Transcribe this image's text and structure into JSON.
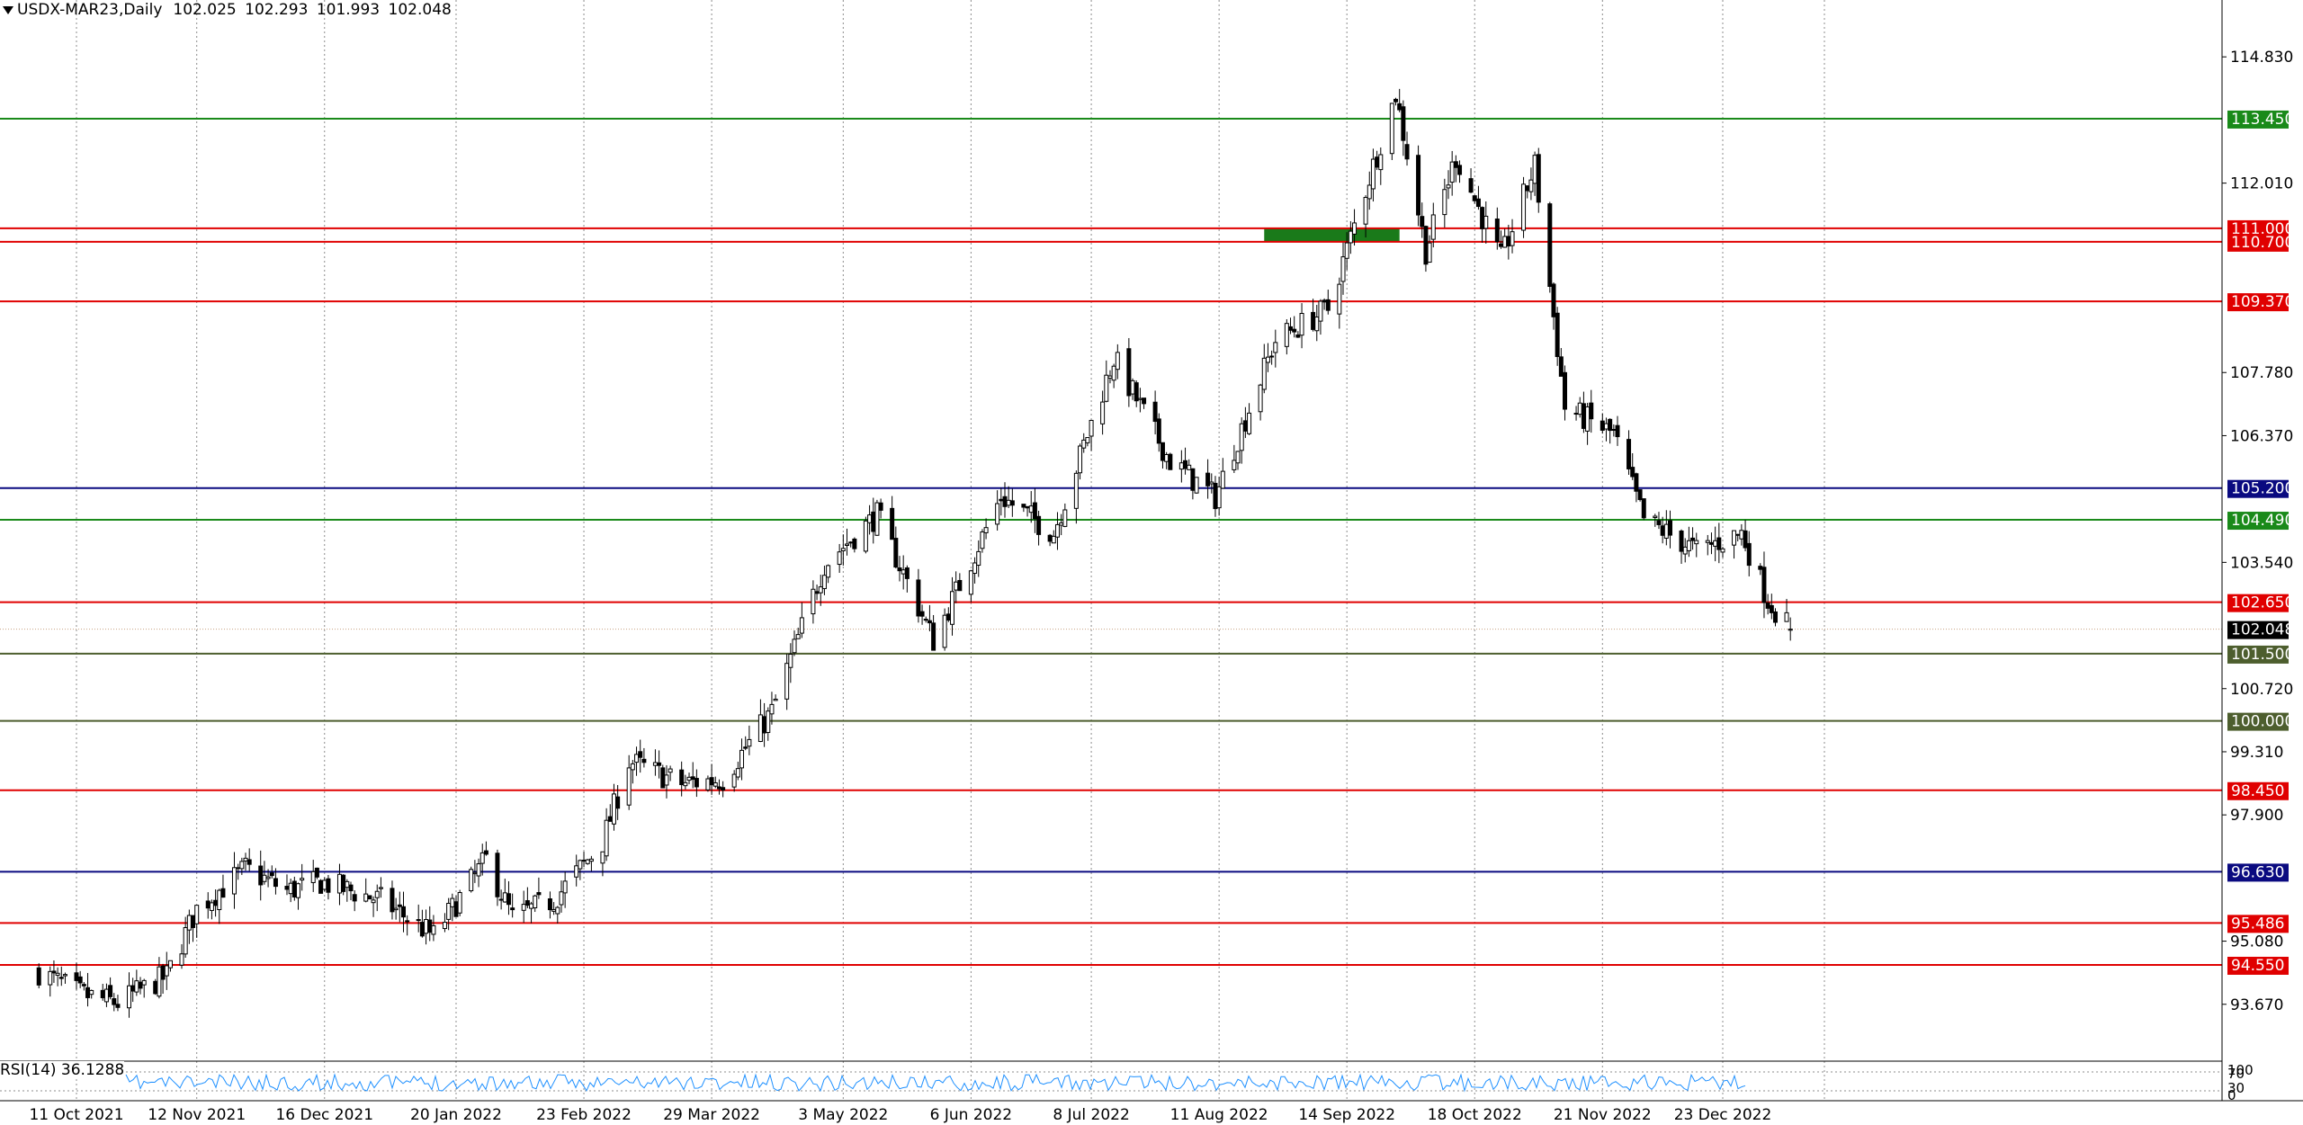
{
  "header": {
    "symbol": "USDX-MAR23,Daily",
    "ohlc": "102.025 102.293 101.993 102.048"
  },
  "rsi": {
    "label": "RSI(14) 36.1288",
    "axis_labels": [
      "100",
      "70",
      "30",
      "0"
    ]
  },
  "colors": {
    "bull": "#ffffff",
    "bear": "#000000",
    "candle_outline": "#000000",
    "grid": "#8c8c8c",
    "rsi_line": "#1e90ff",
    "price_label_bg": "#000000",
    "price_label_text": "#ffffff"
  },
  "chart_data": {
    "type": "candlestick",
    "symbol": "USDX-MAR23",
    "timeframe": "Daily",
    "last_price": "102.048",
    "ylim": [
      92.4,
      116.1
    ],
    "y_ticks": [
      "114.830",
      "112.010",
      "107.780",
      "106.370",
      "103.540",
      "100.720",
      "99.310",
      "97.900",
      "95.080",
      "93.670"
    ],
    "x_ticks": [
      "11 Oct 2021",
      "12 Nov 2021",
      "16 Dec 2021",
      "20 Jan 2022",
      "23 Feb 2022",
      "29 Mar 2022",
      "3 May 2022",
      "6 Jun 2022",
      "8 Jul 2022",
      "11 Aug 2022",
      "14 Sep 2022",
      "18 Oct 2022",
      "21 Nov 2022",
      "23 Dec 2022"
    ],
    "levels": [
      {
        "value": "113.450",
        "color": "#1a8a1a"
      },
      {
        "value": "111.000",
        "color": "#e00000"
      },
      {
        "value": "110.700",
        "color": "#e00000"
      },
      {
        "value": "109.370",
        "color": "#e00000"
      },
      {
        "value": "105.200",
        "color": "#0a0a80"
      },
      {
        "value": "104.490",
        "color": "#1a8a1a"
      },
      {
        "value": "102.650",
        "color": "#e00000"
      },
      {
        "value": "101.500",
        "color": "#4d5e2e"
      },
      {
        "value": "100.000",
        "color": "#4d5e2e"
      },
      {
        "value": "98.450",
        "color": "#e00000"
      },
      {
        "value": "96.630",
        "color": "#0a0a80"
      },
      {
        "value": "95.486",
        "color": "#e00000"
      },
      {
        "value": "94.550",
        "color": "#e00000"
      }
    ],
    "zone": {
      "x_from": "2022-08-23",
      "x_to": "2022-09-28",
      "y_from": 110.7,
      "y_to": 111.0,
      "color": "#1a7a1a"
    },
    "close_path": [
      {
        "date": "2021-10-01",
        "close": 94.4
      },
      {
        "date": "2021-10-12",
        "close": 93.9
      },
      {
        "date": "2021-10-22",
        "close": 93.7
      },
      {
        "date": "2021-11-04",
        "close": 94.3
      },
      {
        "date": "2021-11-12",
        "close": 95.8
      },
      {
        "date": "2021-11-25",
        "close": 96.7
      },
      {
        "date": "2021-12-06",
        "close": 96.2
      },
      {
        "date": "2021-12-15",
        "close": 96.4
      },
      {
        "date": "2021-12-31",
        "close": 96.0
      },
      {
        "date": "2022-01-14",
        "close": 95.2
      },
      {
        "date": "2022-01-28",
        "close": 96.9
      },
      {
        "date": "2022-02-04",
        "close": 95.6
      },
      {
        "date": "2022-02-15",
        "close": 96.0
      },
      {
        "date": "2022-02-28",
        "close": 97.3
      },
      {
        "date": "2022-03-07",
        "close": 99.1
      },
      {
        "date": "2022-03-21",
        "close": 98.6
      },
      {
        "date": "2022-04-01",
        "close": 98.7
      },
      {
        "date": "2022-04-14",
        "close": 100.2
      },
      {
        "date": "2022-04-28",
        "close": 103.5
      },
      {
        "date": "2022-05-12",
        "close": 104.6
      },
      {
        "date": "2022-05-27",
        "close": 101.8
      },
      {
        "date": "2022-06-14",
        "close": 105.0
      },
      {
        "date": "2022-06-28",
        "close": 104.2
      },
      {
        "date": "2022-07-14",
        "close": 108.1
      },
      {
        "date": "2022-07-29",
        "close": 105.8
      },
      {
        "date": "2022-08-10",
        "close": 105.0
      },
      {
        "date": "2022-08-26",
        "close": 108.5
      },
      {
        "date": "2022-09-09",
        "close": 109.2
      },
      {
        "date": "2022-09-27",
        "close": 114.0
      },
      {
        "date": "2022-10-05",
        "close": 110.5
      },
      {
        "date": "2022-10-13",
        "close": 112.6
      },
      {
        "date": "2022-10-25",
        "close": 110.3
      },
      {
        "date": "2022-11-03",
        "close": 112.4
      },
      {
        "date": "2022-11-11",
        "close": 107.0
      },
      {
        "date": "2022-11-24",
        "close": 106.4
      },
      {
        "date": "2022-12-02",
        "close": 104.5
      },
      {
        "date": "2022-12-16",
        "close": 103.8
      },
      {
        "date": "2022-12-28",
        "close": 104.2
      },
      {
        "date": "2023-01-04",
        "close": 102.7
      },
      {
        "date": "2023-01-10",
        "close": 102.05
      }
    ]
  }
}
